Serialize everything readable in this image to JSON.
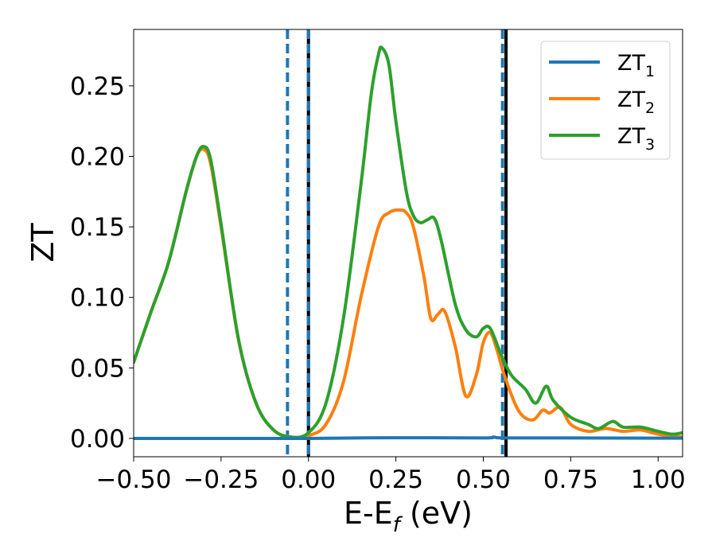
{
  "chart_data": {
    "type": "line",
    "title": "",
    "xlabel": "E-E",
    "xlabel_sub": "f",
    "xlabel_unit": " (eV)",
    "ylabel": "ZT",
    "xlim": [
      -0.5,
      1.07
    ],
    "ylim": [
      -0.013,
      0.29
    ],
    "xticks": [
      -0.5,
      -0.25,
      0.0,
      0.25,
      0.5,
      0.75,
      1.0
    ],
    "xtick_labels": [
      "−0.50",
      "−0.25",
      "0.00",
      "0.25",
      "0.50",
      "0.75",
      "1.00"
    ],
    "yticks": [
      0.0,
      0.05,
      0.1,
      0.15,
      0.2,
      0.25
    ],
    "ytick_labels": [
      "0.00",
      "0.05",
      "0.10",
      "0.15",
      "0.20",
      "0.25"
    ],
    "grid": false,
    "legend_position": "top-right",
    "series": [
      {
        "name": "ZT",
        "name_sub": "1",
        "color": "#1f77b4",
        "x": [
          -0.5,
          -0.3,
          0.0,
          0.25,
          0.5,
          0.53,
          0.56,
          0.75,
          1.0,
          1.07
        ],
        "y": [
          0.0,
          0.0,
          0.0,
          0.0005,
          0.0003,
          0.001,
          0.0003,
          0.0003,
          0.0002,
          0.0002
        ]
      },
      {
        "name": "ZT",
        "name_sub": "2",
        "color": "#ff7f0e",
        "x": [
          -0.5,
          -0.45,
          -0.4,
          -0.35,
          -0.32,
          -0.3,
          -0.28,
          -0.25,
          -0.2,
          -0.15,
          -0.1,
          -0.05,
          0.0,
          0.05,
          0.1,
          0.15,
          0.2,
          0.23,
          0.26,
          0.28,
          0.3,
          0.33,
          0.35,
          0.37,
          0.39,
          0.42,
          0.45,
          0.48,
          0.5,
          0.52,
          0.54,
          0.56,
          0.6,
          0.64,
          0.67,
          0.69,
          0.72,
          0.75,
          0.8,
          0.85,
          0.9,
          0.95,
          1.0,
          1.07
        ],
        "y": [
          0.054,
          0.09,
          0.125,
          0.175,
          0.2,
          0.205,
          0.195,
          0.15,
          0.07,
          0.025,
          0.006,
          0.001,
          0.002,
          0.01,
          0.04,
          0.1,
          0.15,
          0.16,
          0.162,
          0.16,
          0.15,
          0.115,
          0.085,
          0.088,
          0.09,
          0.065,
          0.03,
          0.045,
          0.068,
          0.075,
          0.062,
          0.045,
          0.02,
          0.013,
          0.02,
          0.018,
          0.022,
          0.01,
          0.005,
          0.007,
          0.005,
          0.006,
          0.003,
          0.001
        ]
      },
      {
        "name": "ZT",
        "name_sub": "3",
        "color": "#2ca02c",
        "x": [
          -0.5,
          -0.45,
          -0.4,
          -0.35,
          -0.32,
          -0.3,
          -0.28,
          -0.25,
          -0.2,
          -0.15,
          -0.1,
          -0.05,
          0.0,
          0.05,
          0.1,
          0.15,
          0.18,
          0.2,
          0.21,
          0.23,
          0.25,
          0.28,
          0.3,
          0.32,
          0.34,
          0.36,
          0.38,
          0.42,
          0.45,
          0.48,
          0.5,
          0.52,
          0.55,
          0.58,
          0.62,
          0.65,
          0.68,
          0.7,
          0.75,
          0.8,
          0.83,
          0.87,
          0.9,
          0.95,
          1.0,
          1.04,
          1.07
        ],
        "y": [
          0.054,
          0.09,
          0.125,
          0.175,
          0.2,
          0.207,
          0.198,
          0.152,
          0.07,
          0.025,
          0.006,
          0.001,
          0.004,
          0.025,
          0.085,
          0.18,
          0.245,
          0.272,
          0.277,
          0.265,
          0.225,
          0.175,
          0.158,
          0.153,
          0.155,
          0.156,
          0.14,
          0.095,
          0.077,
          0.072,
          0.078,
          0.078,
          0.06,
          0.045,
          0.035,
          0.025,
          0.037,
          0.027,
          0.015,
          0.01,
          0.007,
          0.012,
          0.008,
          0.008,
          0.005,
          0.003,
          0.004
        ]
      }
    ],
    "vlines": [
      {
        "x": -0.06,
        "color": "#1f77b4",
        "style": "dashed"
      },
      {
        "x": 0.0,
        "color": "#000000",
        "style": "solid"
      },
      {
        "x": 0.0,
        "color": "#1f77b4",
        "style": "dashed"
      },
      {
        "x": 0.555,
        "color": "#1f77b4",
        "style": "dashed"
      },
      {
        "x": 0.565,
        "color": "#000000",
        "style": "solid"
      }
    ]
  }
}
